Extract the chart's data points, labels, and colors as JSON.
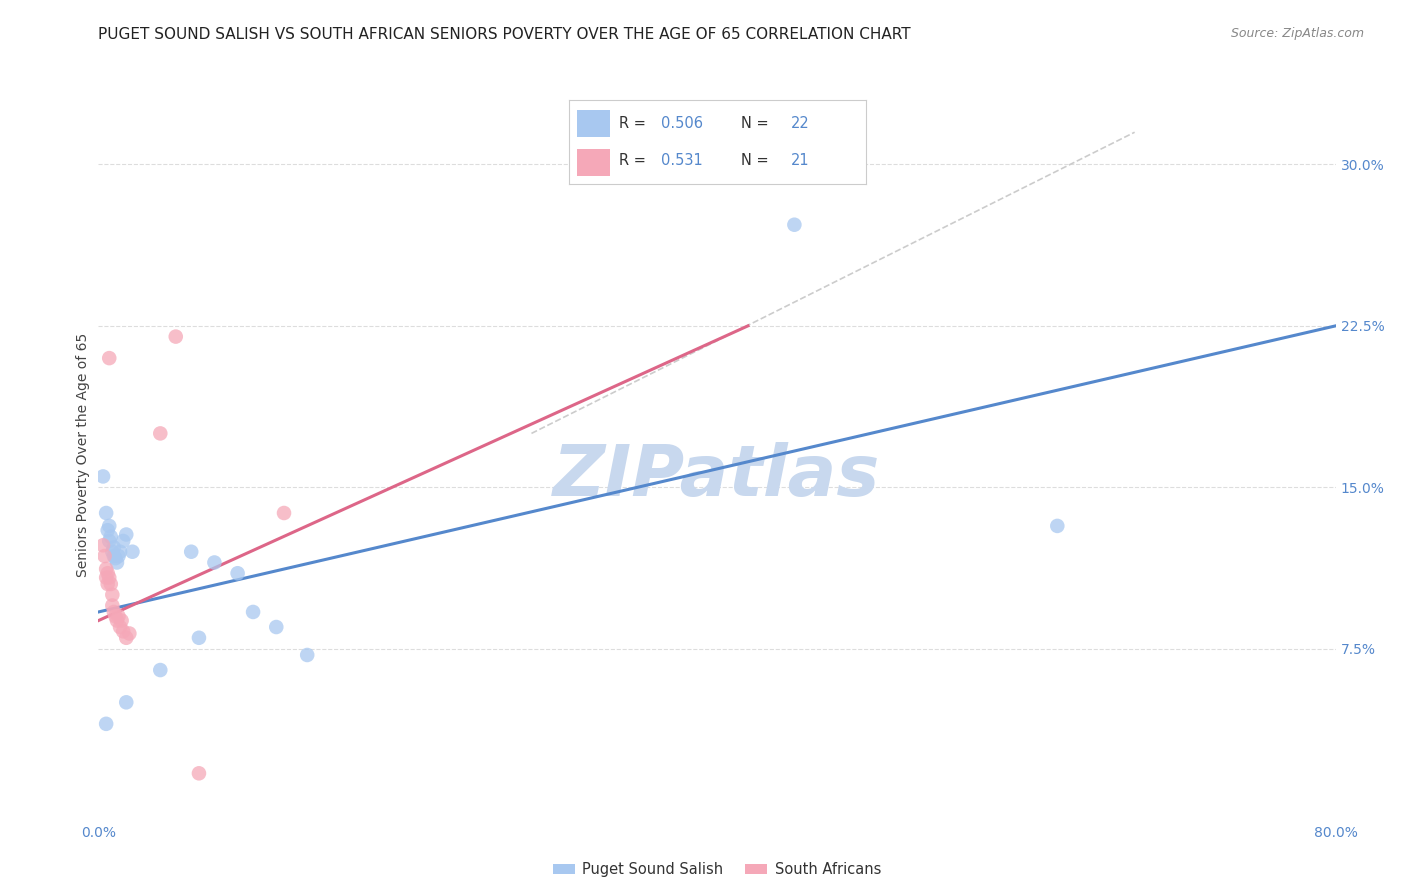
{
  "title": "PUGET SOUND SALISH VS SOUTH AFRICAN SENIORS POVERTY OVER THE AGE OF 65 CORRELATION CHART",
  "source": "Source: ZipAtlas.com",
  "ylabel": "Seniors Poverty Over the Age of 65",
  "xlim": [
    0.0,
    0.8
  ],
  "ylim": [
    -0.005,
    0.335
  ],
  "xticks": [
    0.0,
    0.16,
    0.32,
    0.48,
    0.64,
    0.8
  ],
  "xtick_labels": [
    "0.0%",
    "",
    "",
    "",
    "",
    "80.0%"
  ],
  "ytick_labels_right": [
    "30.0%",
    "22.5%",
    "15.0%",
    "7.5%"
  ],
  "ytick_vals_right": [
    0.3,
    0.225,
    0.15,
    0.075
  ],
  "watermark": "ZIPatlas",
  "blue_scatter": [
    [
      0.003,
      0.155
    ],
    [
      0.005,
      0.138
    ],
    [
      0.006,
      0.13
    ],
    [
      0.007,
      0.132
    ],
    [
      0.007,
      0.125
    ],
    [
      0.008,
      0.127
    ],
    [
      0.009,
      0.12
    ],
    [
      0.01,
      0.122
    ],
    [
      0.01,
      0.118
    ],
    [
      0.011,
      0.117
    ],
    [
      0.012,
      0.115
    ],
    [
      0.013,
      0.118
    ],
    [
      0.014,
      0.12
    ],
    [
      0.016,
      0.125
    ],
    [
      0.018,
      0.128
    ],
    [
      0.022,
      0.12
    ],
    [
      0.06,
      0.12
    ],
    [
      0.075,
      0.115
    ],
    [
      0.09,
      0.11
    ],
    [
      0.1,
      0.092
    ],
    [
      0.115,
      0.085
    ],
    [
      0.135,
      0.072
    ],
    [
      0.005,
      0.04
    ],
    [
      0.018,
      0.05
    ],
    [
      0.04,
      0.065
    ],
    [
      0.065,
      0.08
    ],
    [
      0.62,
      0.132
    ],
    [
      0.45,
      0.272
    ]
  ],
  "pink_scatter": [
    [
      0.003,
      0.123
    ],
    [
      0.004,
      0.118
    ],
    [
      0.005,
      0.112
    ],
    [
      0.005,
      0.108
    ],
    [
      0.006,
      0.11
    ],
    [
      0.006,
      0.105
    ],
    [
      0.007,
      0.108
    ],
    [
      0.008,
      0.105
    ],
    [
      0.009,
      0.1
    ],
    [
      0.009,
      0.095
    ],
    [
      0.01,
      0.092
    ],
    [
      0.011,
      0.09
    ],
    [
      0.012,
      0.088
    ],
    [
      0.013,
      0.09
    ],
    [
      0.014,
      0.085
    ],
    [
      0.015,
      0.088
    ],
    [
      0.016,
      0.083
    ],
    [
      0.018,
      0.08
    ],
    [
      0.02,
      0.082
    ],
    [
      0.007,
      0.21
    ],
    [
      0.04,
      0.175
    ],
    [
      0.05,
      0.22
    ],
    [
      0.12,
      0.138
    ],
    [
      0.065,
      0.017
    ]
  ],
  "blue_line_x": [
    0.0,
    0.8
  ],
  "blue_line_y": [
    0.092,
    0.225
  ],
  "pink_line_x": [
    0.0,
    0.42
  ],
  "pink_line_y": [
    0.088,
    0.225
  ],
  "diag_line_x": [
    0.28,
    0.67
  ],
  "diag_line_y": [
    0.175,
    0.315
  ],
  "blue_color": "#a8c8f0",
  "pink_color": "#f5a8b8",
  "blue_line_color": "#5588cc",
  "pink_line_color": "#dd6688",
  "diag_line_color": "#cccccc",
  "title_fontsize": 11,
  "axis_fontsize": 10,
  "watermark_fontsize": 52,
  "watermark_color": "#c8d8ee",
  "scatter_size": 110,
  "background_color": "#ffffff",
  "grid_color": "#dddddd"
}
